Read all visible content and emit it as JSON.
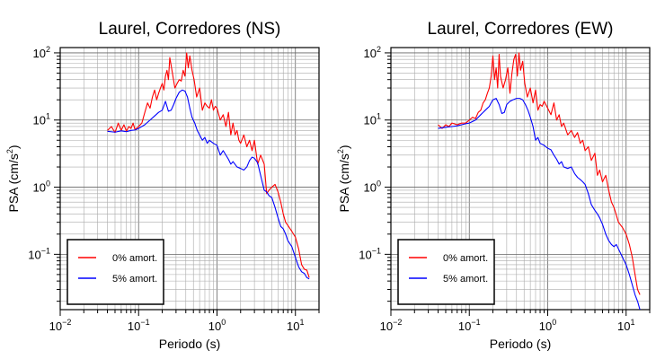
{
  "chart_data": [
    {
      "type": "line",
      "title": "Laurel, Corredores (NS)",
      "xlabel": "Periodo (s)",
      "ylabel": "PSA (cm/s²)",
      "ylabel_base": "PSA (cm/s",
      "ylabel_exp": "2",
      "ylabel_end": ")",
      "xscale": "log",
      "yscale": "log",
      "xlim": [
        0.01,
        20
      ],
      "ylim": [
        0.015,
        120
      ],
      "grid": true,
      "legend_position": "bottom-left",
      "x_ticks": [
        {
          "base": "10",
          "exp": "−2"
        },
        {
          "base": "10",
          "exp": "−1"
        },
        {
          "base": "10",
          "exp": "0"
        },
        {
          "base": "10",
          "exp": "1"
        }
      ],
      "y_ticks": [
        {
          "base": "10",
          "exp": "−1"
        },
        {
          "base": "10",
          "exp": "0"
        },
        {
          "base": "10",
          "exp": "1"
        },
        {
          "base": "10",
          "exp": "2"
        }
      ],
      "series": [
        {
          "name": "0% amort.",
          "color": "#ff0000",
          "x": [
            0.04,
            0.045,
            0.05,
            0.055,
            0.06,
            0.065,
            0.07,
            0.075,
            0.08,
            0.085,
            0.09,
            0.1,
            0.11,
            0.12,
            0.13,
            0.14,
            0.15,
            0.16,
            0.17,
            0.18,
            0.19,
            0.2,
            0.21,
            0.22,
            0.23,
            0.24,
            0.25,
            0.27,
            0.29,
            0.31,
            0.33,
            0.35,
            0.37,
            0.39,
            0.41,
            0.43,
            0.45,
            0.48,
            0.51,
            0.55,
            0.6,
            0.65,
            0.7,
            0.75,
            0.8,
            0.85,
            0.9,
            0.95,
            1.0,
            1.1,
            1.2,
            1.3,
            1.4,
            1.5,
            1.6,
            1.7,
            1.8,
            1.9,
            2.0,
            2.2,
            2.4,
            2.6,
            2.8,
            3.0,
            3.3,
            3.6,
            4.0,
            4.3,
            4.6,
            5.0,
            5.5,
            6.0,
            6.5,
            7.0,
            7.5,
            8.0,
            9.0,
            10.0,
            11.0,
            12.0,
            13.0,
            14.0,
            15.0
          ],
          "y": [
            7,
            8,
            6.5,
            9,
            7,
            8.5,
            6.8,
            8,
            7.5,
            9,
            7.2,
            8,
            9,
            13,
            18,
            15,
            22,
            28,
            20,
            25,
            30,
            35,
            28,
            45,
            55,
            40,
            85,
            50,
            30,
            35,
            40,
            38,
            55,
            45,
            100,
            60,
            90,
            55,
            40,
            22,
            30,
            14,
            18,
            16,
            15,
            20,
            14,
            16,
            15,
            10,
            12,
            8,
            13,
            6,
            9,
            6,
            7,
            5,
            4.5,
            6,
            4,
            5,
            3.5,
            5,
            2.2,
            3,
            2.2,
            0.8,
            0.9,
            1,
            1.1,
            0.85,
            0.6,
            0.4,
            0.3,
            0.27,
            0.22,
            0.18,
            0.12,
            0.07,
            0.06,
            0.058,
            0.045
          ]
        },
        {
          "name": "5% amort.",
          "color": "#0000ff",
          "x": [
            0.04,
            0.05,
            0.06,
            0.07,
            0.08,
            0.09,
            0.1,
            0.12,
            0.14,
            0.16,
            0.18,
            0.2,
            0.22,
            0.24,
            0.26,
            0.28,
            0.3,
            0.33,
            0.36,
            0.39,
            0.42,
            0.45,
            0.48,
            0.52,
            0.56,
            0.6,
            0.65,
            0.7,
            0.75,
            0.8,
            0.9,
            1.0,
            1.1,
            1.2,
            1.3,
            1.4,
            1.5,
            1.6,
            1.8,
            2.0,
            2.2,
            2.4,
            2.6,
            2.8,
            3.0,
            3.3,
            3.6,
            4.0,
            4.3,
            4.6,
            5.0,
            5.5,
            6.0,
            6.5,
            7.0,
            7.5,
            8.0,
            9.0,
            10.0,
            11.0,
            12.0,
            13.0,
            14.0,
            15.0
          ],
          "y": [
            6.8,
            6.6,
            6.9,
            6.7,
            7,
            7.1,
            7.5,
            8.5,
            10,
            11.5,
            13,
            14,
            19,
            13.5,
            14,
            17,
            21,
            26,
            28,
            27,
            22,
            15,
            11,
            9,
            7,
            6,
            5,
            5.5,
            4.5,
            5,
            4.5,
            4.2,
            3,
            3.5,
            3,
            2.6,
            2.2,
            2.4,
            2,
            1.9,
            1.8,
            2,
            2.5,
            2.8,
            2.7,
            2.3,
            1.5,
            0.9,
            0.85,
            0.75,
            0.7,
            0.5,
            0.35,
            0.26,
            0.24,
            0.2,
            0.16,
            0.13,
            0.09,
            0.065,
            0.055,
            0.052,
            0.045,
            0.043
          ]
        }
      ]
    },
    {
      "type": "line",
      "title": "Laurel, Corredores (EW)",
      "xlabel": "Periodo (s)",
      "ylabel": "PSA (cm/s²)",
      "ylabel_base": "PSA (cm/s",
      "ylabel_exp": "2",
      "ylabel_end": ")",
      "xscale": "log",
      "yscale": "log",
      "xlim": [
        0.01,
        20
      ],
      "ylim": [
        0.015,
        120
      ],
      "grid": true,
      "legend_position": "bottom-left",
      "x_ticks": [
        {
          "base": "10",
          "exp": "−2"
        },
        {
          "base": "10",
          "exp": "−1"
        },
        {
          "base": "10",
          "exp": "0"
        },
        {
          "base": "10",
          "exp": "1"
        }
      ],
      "y_ticks": [
        {
          "base": "10",
          "exp": "−1"
        },
        {
          "base": "10",
          "exp": "0"
        },
        {
          "base": "10",
          "exp": "1"
        },
        {
          "base": "10",
          "exp": "2"
        }
      ],
      "series": [
        {
          "name": "0% amort.",
          "color": "#ff0000",
          "x": [
            0.04,
            0.045,
            0.05,
            0.055,
            0.06,
            0.07,
            0.08,
            0.09,
            0.1,
            0.11,
            0.12,
            0.13,
            0.14,
            0.15,
            0.16,
            0.17,
            0.18,
            0.19,
            0.2,
            0.21,
            0.22,
            0.23,
            0.24,
            0.25,
            0.27,
            0.29,
            0.31,
            0.33,
            0.35,
            0.37,
            0.39,
            0.41,
            0.43,
            0.45,
            0.48,
            0.51,
            0.55,
            0.6,
            0.65,
            0.7,
            0.75,
            0.8,
            0.85,
            0.9,
            1.0,
            1.1,
            1.2,
            1.3,
            1.4,
            1.5,
            1.6,
            1.8,
            2.0,
            2.2,
            2.4,
            2.6,
            2.8,
            3.0,
            3.3,
            3.6,
            4.0,
            4.3,
            4.6,
            5.0,
            5.5,
            6.0,
            6.5,
            7.0,
            8.0,
            9.0,
            10.0,
            11.0,
            12.0,
            13.0,
            14.0,
            15.0
          ],
          "y": [
            8.5,
            7.5,
            8.5,
            8,
            9,
            8.5,
            9,
            9,
            10,
            11,
            10.5,
            13,
            14,
            18,
            20,
            25,
            30,
            45,
            90,
            40,
            60,
            30,
            95,
            45,
            30,
            40,
            60,
            25,
            50,
            80,
            95,
            45,
            100,
            55,
            75,
            35,
            22,
            30,
            18,
            28,
            14,
            17,
            16,
            19,
            15,
            12,
            18,
            10,
            12,
            8,
            9,
            6,
            7,
            5.5,
            6.5,
            4.5,
            5,
            3.5,
            4,
            2.5,
            3.2,
            1.5,
            1.8,
            1.2,
            1.5,
            0.9,
            0.6,
            0.5,
            0.3,
            0.25,
            0.2,
            0.14,
            0.09,
            0.05,
            0.03,
            0.025
          ]
        },
        {
          "name": "5% amort.",
          "color": "#0000ff",
          "x": [
            0.04,
            0.05,
            0.06,
            0.07,
            0.08,
            0.09,
            0.1,
            0.11,
            0.12,
            0.13,
            0.14,
            0.15,
            0.16,
            0.17,
            0.18,
            0.19,
            0.2,
            0.22,
            0.24,
            0.26,
            0.28,
            0.3,
            0.33,
            0.36,
            0.4,
            0.44,
            0.48,
            0.52,
            0.56,
            0.6,
            0.65,
            0.7,
            0.75,
            0.8,
            0.9,
            1.0,
            1.1,
            1.2,
            1.3,
            1.4,
            1.5,
            1.6,
            1.8,
            2.0,
            2.2,
            2.4,
            2.6,
            2.8,
            3.0,
            3.3,
            3.6,
            4.0,
            4.3,
            4.6,
            5.0,
            5.5,
            6.0,
            6.5,
            7.0,
            7.5,
            8.0,
            9.0,
            10.0,
            11.0,
            12.0,
            13.0,
            14.0,
            15.0
          ],
          "y": [
            7.5,
            7.8,
            8,
            8.2,
            8.5,
            8.8,
            9,
            9.5,
            10,
            11,
            12,
            13,
            14,
            15,
            16,
            18,
            20,
            21,
            17,
            12.5,
            13,
            17,
            19,
            20,
            21,
            21,
            20,
            17,
            14,
            11,
            8,
            5,
            5.5,
            4.5,
            4.2,
            3.8,
            3.6,
            3,
            2.6,
            2.2,
            2.4,
            2,
            1.9,
            2,
            1.6,
            1.4,
            1.3,
            1.2,
            1.1,
            0.8,
            0.55,
            0.45,
            0.4,
            0.35,
            0.28,
            0.2,
            0.16,
            0.14,
            0.13,
            0.14,
            0.12,
            0.09,
            0.07,
            0.05,
            0.035,
            0.025,
            0.02,
            0.015
          ]
        }
      ]
    }
  ]
}
